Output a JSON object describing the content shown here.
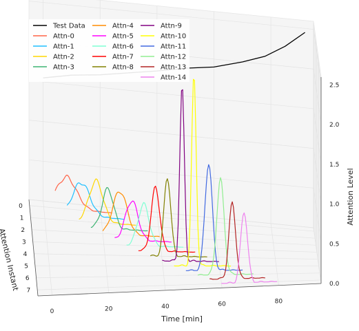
{
  "chart_data": {
    "type": "line3d",
    "xlabel": "Time [min]",
    "ylabel": "Attention Instant",
    "zlabel": "Attention Level",
    "x_ticks": [
      "0",
      "20",
      "40",
      "60",
      "80"
    ],
    "y_ticks": [
      "0",
      "1",
      "2",
      "3",
      "4",
      "5",
      "6",
      "7"
    ],
    "z_ticks": [
      "0.0",
      "0.5",
      "1.0",
      "1.5",
      "2.0",
      "2.5"
    ],
    "xlim": [
      -5,
      95
    ],
    "ylim": [
      -0.5,
      7.5
    ],
    "zlim": [
      0,
      2.6
    ],
    "test_data": {
      "name": "Test Data",
      "color": "#000000",
      "y": -0.5,
      "x": [
        0,
        10,
        20,
        30,
        40,
        50,
        60,
        70,
        78,
        85,
        92
      ],
      "z": [
        1.55,
        1.62,
        1.66,
        1.72,
        1.78,
        1.85,
        1.9,
        2.0,
        2.1,
        2.25,
        2.45
      ]
    },
    "series": [
      {
        "name": "Attn-0",
        "color": "#ff6347",
        "y": 0,
        "x_start": 4,
        "peak_x": 8,
        "peak": 0.4,
        "width": 3.5
      },
      {
        "name": "Attn-1",
        "color": "#1ebfff",
        "y": 0.5,
        "x_start": 8,
        "peak_x": 13,
        "peak": 0.42,
        "width": 3.0
      },
      {
        "name": "Attn-2",
        "color": "#ffd700",
        "y": 1.0,
        "x_start": 12,
        "peak_x": 18,
        "peak": 0.52,
        "width": 2.5
      },
      {
        "name": "Attn-3",
        "color": "#3cb371",
        "y": 1.5,
        "x_start": 16,
        "peak_x": 22,
        "peak": 0.5,
        "width": 2.0
      },
      {
        "name": "Attn-4",
        "color": "#ff8c00",
        "y": 2.0,
        "x_start": 20,
        "peak_x": 26,
        "peak": 0.55,
        "width": 2.5
      },
      {
        "name": "Attn-5",
        "color": "#ff00ff",
        "y": 2.5,
        "x_start": 24,
        "peak_x": 30,
        "peak": 0.5,
        "width": 2.2
      },
      {
        "name": "Attn-6",
        "color": "#7fffd4",
        "y": 3.0,
        "x_start": 28,
        "peak_x": 34,
        "peak": 0.52,
        "width": 2.0
      },
      {
        "name": "Attn-7",
        "color": "#ff0000",
        "y": 3.5,
        "x_start": 32,
        "peak_x": 38,
        "peak": 0.8,
        "width": 1.5
      },
      {
        "name": "Attn-8",
        "color": "#808000",
        "y": 4.0,
        "x_start": 36,
        "peak_x": 42,
        "peak": 1.0,
        "width": 1.2
      },
      {
        "name": "Attn-9",
        "color": "#800080",
        "y": 4.5,
        "x_start": 40,
        "peak_x": 47,
        "peak": 2.2,
        "width": 0.8
      },
      {
        "name": "Attn-10",
        "color": "#ffff00",
        "y": 5.0,
        "x_start": 44,
        "peak_x": 51,
        "peak": 2.4,
        "width": 0.8
      },
      {
        "name": "Attn-11",
        "color": "#4169e1",
        "y": 5.5,
        "x_start": 48,
        "peak_x": 56,
        "peak": 1.35,
        "width": 1.3
      },
      {
        "name": "Attn-12",
        "color": "#90ee90",
        "y": 6.0,
        "x_start": 52,
        "peak_x": 60,
        "peak": 1.2,
        "width": 1.3
      },
      {
        "name": "Attn-13",
        "color": "#b22222",
        "y": 6.5,
        "x_start": 56,
        "peak_x": 64,
        "peak": 0.95,
        "width": 1.2
      },
      {
        "name": "Attn-14",
        "color": "#ee82ee",
        "y": 7.0,
        "x_start": 60,
        "peak_x": 68,
        "peak": 0.9,
        "width": 1.2
      }
    ],
    "legend": {
      "position": "upper-left",
      "columns": 3
    }
  }
}
